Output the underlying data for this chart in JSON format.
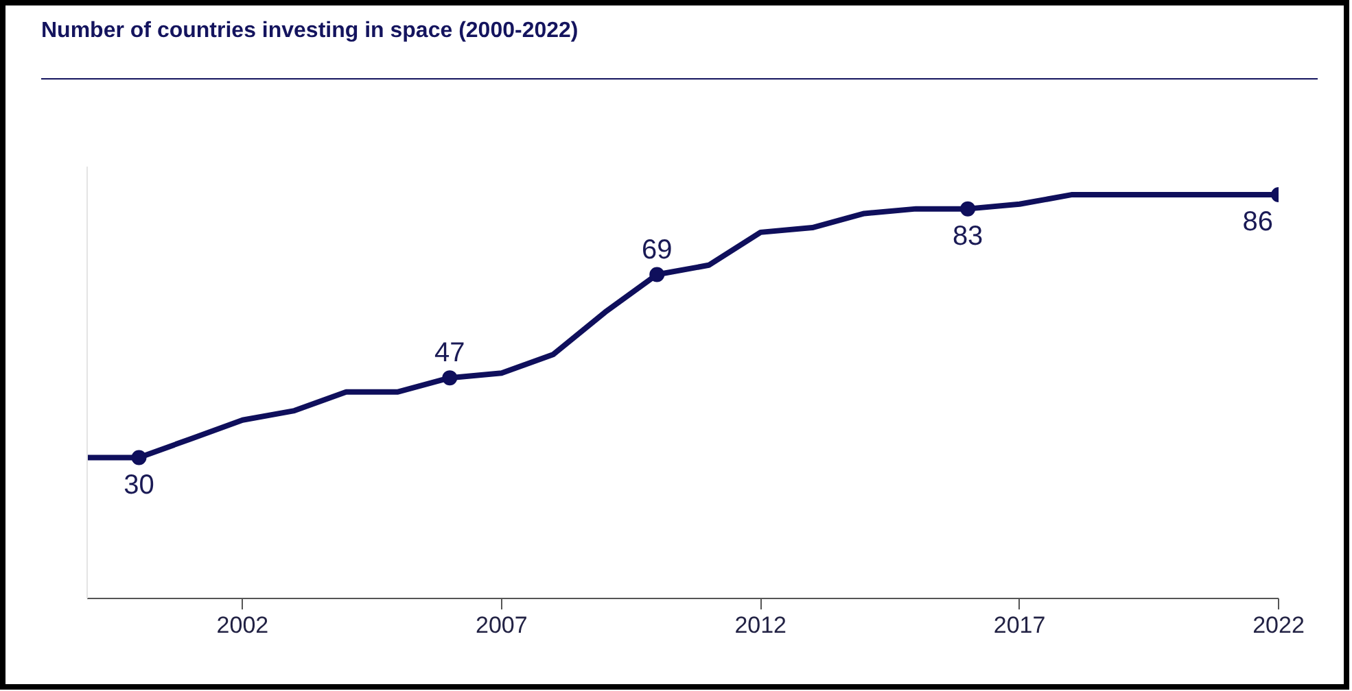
{
  "chart_data": {
    "type": "line",
    "title": "Number of countries investing in space (2000-2022)",
    "x": [
      1999,
      2000,
      2001,
      2002,
      2003,
      2004,
      2005,
      2006,
      2007,
      2008,
      2009,
      2010,
      2011,
      2012,
      2013,
      2014,
      2015,
      2016,
      2017,
      2018,
      2019,
      2020,
      2021,
      2022
    ],
    "series": [
      {
        "color": "#0f0f5c",
        "values": [
          30,
          30,
          34,
          38,
          40,
          44,
          44,
          47,
          48,
          52,
          61,
          69,
          71,
          78,
          79,
          82,
          83,
          83,
          84,
          86,
          86,
          86,
          86,
          86
        ]
      },
      {
        "type": "scatter",
        "color": "#0f0f5c",
        "marker": "circle",
        "x": [
          2000,
          2006,
          2010,
          2016,
          2022
        ],
        "values": [
          30,
          47,
          69,
          83,
          86
        ],
        "value_labels": [
          "30",
          "47",
          "69",
          "83",
          "86"
        ]
      }
    ],
    "line_style": "solid",
    "xlim": [
      1999,
      2022
    ],
    "xticks": [
      2002,
      2007,
      2012,
      2017,
      2022
    ],
    "ylim": [
      0,
      92
    ],
    "tick_labels": "x",
    "grid": false
  }
}
